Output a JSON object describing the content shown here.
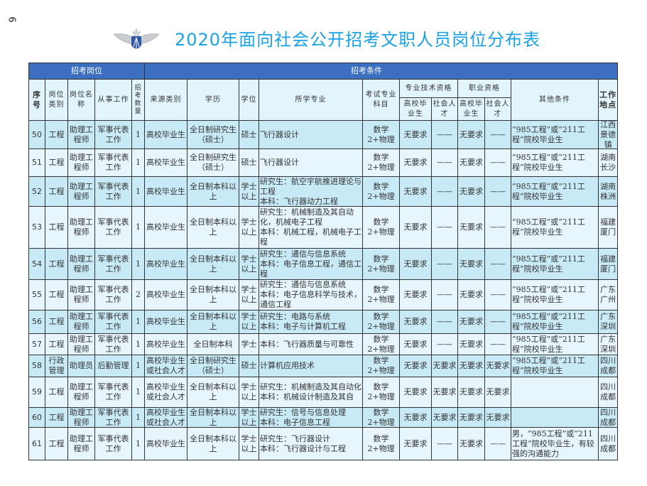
{
  "page_number": "6",
  "title": "2020年面向社会公开招考文职人员岗位分布表",
  "logo": {
    "name": "air-force-wings-emblem",
    "colors": {
      "wing": "#c9cdd2",
      "shield": "#2f55a8"
    }
  },
  "colors": {
    "band": "#3d6fc0",
    "title": "#19a2e6",
    "row_dark": "#c8eaf7",
    "row_light": "#e6f6fc"
  },
  "header": {
    "group_position": "招考岗位",
    "group_conditions": "招考条件",
    "no": "序号",
    "category": "岗位类别",
    "title": "岗位名称",
    "work": "从事工作",
    "count": "招考数量",
    "source": "来源类别",
    "education": "学历",
    "degree": "学位",
    "major": "所学专业",
    "exam": "考试专业科目",
    "tech_qual": "专业技术资格",
    "voc_qual": "职业资格",
    "grad": "高校毕业生",
    "social": "社会人才",
    "other": "其他条件",
    "location": "工作地点"
  },
  "rows": [
    {
      "no": "50",
      "category": "工程",
      "title": "助理工程师",
      "work": "军事代表工作",
      "count": "1",
      "source": "高校毕业生",
      "education": "全日制研究生（硕士）",
      "degree": "硕士",
      "major": "飞行器设计",
      "exam": "数学2+物理",
      "tech_grad": "无要求",
      "tech_social": "——",
      "voc_grad": "无要求",
      "voc_social": "——",
      "other": "“985工程”或“211工程”院校毕业生",
      "location": "江西景德镇"
    },
    {
      "no": "51",
      "category": "工程",
      "title": "助理工程师",
      "work": "军事代表工作",
      "count": "1",
      "source": "高校毕业生",
      "education": "全日制研究生（硕士）",
      "degree": "硕士",
      "major": "飞行器设计",
      "exam": "数学2+物理",
      "tech_grad": "无要求",
      "tech_social": "——",
      "voc_grad": "无要求",
      "voc_social": "——",
      "other": "“985工程”或“211工程”院校毕业生",
      "location": "湖南长沙"
    },
    {
      "no": "52",
      "category": "工程",
      "title": "助理工程师",
      "work": "军事代表工作",
      "count": "1",
      "source": "高校毕业生",
      "education": "全日制本科以上",
      "degree": "学士以上",
      "major": "研究生：航空宇航推进理论与工程\n本科：飞行器动力工程",
      "exam": "数学2+物理",
      "tech_grad": "无要求",
      "tech_social": "——",
      "voc_grad": "无要求",
      "voc_social": "——",
      "other": "“985工程”或“211工程”院校毕业生",
      "location": "湖南株洲"
    },
    {
      "no": "53",
      "category": "工程",
      "title": "助理工程师",
      "work": "军事代表工作",
      "count": "1",
      "source": "高校毕业生",
      "education": "全日制本科以上",
      "degree": "学士以上",
      "major": "研究生：机械制造及其自动化，机械电子工程\n本科：机械工程，机械电子工程",
      "exam": "数学2+物理",
      "tech_grad": "无要求",
      "tech_social": "——",
      "voc_grad": "无要求",
      "voc_social": "——",
      "other": "“985工程”或“211工程”院校毕业生",
      "location": "福建厦门"
    },
    {
      "no": "54",
      "category": "工程",
      "title": "助理工程师",
      "work": "军事代表工作",
      "count": "1",
      "source": "高校毕业生",
      "education": "全日制本科以上",
      "degree": "学士以上",
      "major": "研究生：通信与信息系统\n本科：电子信息工程，通信工程",
      "exam": "数学2+物理",
      "tech_grad": "无要求",
      "tech_social": "——",
      "voc_grad": "无要求",
      "voc_social": "——",
      "other": "“985工程”或“211工程”院校毕业生",
      "location": "福建厦门"
    },
    {
      "no": "55",
      "category": "工程",
      "title": "助理工程师",
      "work": "军事代表工作",
      "count": "2",
      "source": "高校毕业生",
      "education": "全日制本科以上",
      "degree": "学士以上",
      "major": "研究生：通信与信息系统\n本科：电子信息科学与技术，通信工程",
      "exam": "数学2+物理",
      "tech_grad": "无要求",
      "tech_social": "——",
      "voc_grad": "无要求",
      "voc_social": "——",
      "other": "“985工程”或“211工程”院校毕业生",
      "location": "广东广州"
    },
    {
      "no": "56",
      "category": "工程",
      "title": "助理工程师",
      "work": "军事代表工作",
      "count": "1",
      "source": "高校毕业生",
      "education": "全日制本科以上",
      "degree": "学士以上",
      "major": "研究生：电路与系统\n本科：电子与计算机工程",
      "exam": "数学2+物理",
      "tech_grad": "无要求",
      "tech_social": "——",
      "voc_grad": "无要求",
      "voc_social": "——",
      "other": "“985工程”或“211工程”院校毕业生",
      "location": "广东深圳"
    },
    {
      "no": "57",
      "category": "工程",
      "title": "助理工程师",
      "work": "军事代表工作",
      "count": "1",
      "source": "高校毕业生",
      "education": "全日制本科",
      "degree": "学士",
      "major": "本科：飞行器质量与可靠性",
      "exam": "数学2+物理",
      "tech_grad": "无要求",
      "tech_social": "——",
      "voc_grad": "无要求",
      "voc_social": "——",
      "other": "“985工程”或“211工程”院校毕业生",
      "location": "广东深圳"
    },
    {
      "no": "58",
      "category": "行政管理",
      "title": "助理员",
      "work": "后勤管理",
      "count": "1",
      "source": "高校毕业生或社会人才",
      "education": "全日制研究生（硕士）",
      "degree": "硕士",
      "major": "计算机应用技术",
      "exam": "数学2+物理",
      "tech_grad": "无要求",
      "tech_social": "无要求",
      "voc_grad": "无要求",
      "voc_social": "无要求",
      "other": "“985工程”或“211工程”院校毕业生",
      "location": "四川成都"
    },
    {
      "no": "59",
      "category": "工程",
      "title": "助理工程师",
      "work": "军事代表工作",
      "count": "1",
      "source": "高校毕业生或社会人才",
      "education": "全日制本科以上",
      "degree": "学士以上",
      "major": "研究生：机械制造及其自动化\n本科：机械设计制造及其自",
      "exam": "数学2+物理",
      "tech_grad": "无要求",
      "tech_social": "无要求",
      "voc_grad": "无要求",
      "voc_social": "无要求",
      "other": "",
      "location": "四川成都"
    },
    {
      "no": "60",
      "category": "工程",
      "title": "助理工程师",
      "work": "军事代表工作",
      "count": "1",
      "source": "高校毕业生或社会人才",
      "education": "全日制本科以上",
      "degree": "学士以上",
      "major": "研究生：信号与信息处理\n本科：电子信息工程",
      "exam": "数学2+物理",
      "tech_grad": "无要求",
      "tech_social": "无要求",
      "voc_grad": "无要求",
      "voc_social": "无要求",
      "other": "",
      "location": "四川成都"
    },
    {
      "no": "61",
      "category": "工程",
      "title": "助理工程师",
      "work": "军事代表工作",
      "count": "1",
      "source": "高校毕业生",
      "education": "全日制本科以上",
      "degree": "学士以上",
      "major": "研究生：飞行器设计\n本科：飞行器设计与工程",
      "exam": "数学2+物理",
      "tech_grad": "无要求",
      "tech_social": "——",
      "voc_grad": "无要求",
      "voc_social": "——",
      "other": "男，“985工程”或“211工程”院校毕业生，有较强的沟通能力",
      "location": "四川成都"
    }
  ]
}
